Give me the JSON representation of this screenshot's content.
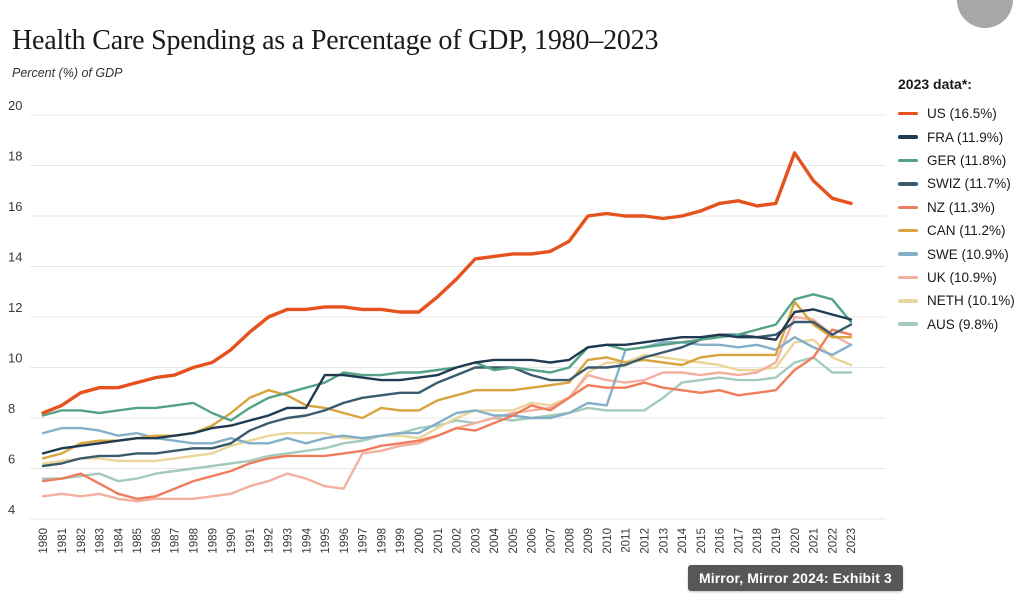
{
  "page": {
    "title": "Health Care Spending as a Percentage of GDP, 1980–2023",
    "y_axis_label": "Percent (%) of GDP",
    "legend_title": "2023 data*:",
    "source_tooltip": "Mirror, Mirror 2024: Exhibit 3"
  },
  "colors": {
    "background": "#ffffff",
    "gridline": "#e7e7e5",
    "axis_text": "#3a3a3a",
    "title_text": "#1a1a1a",
    "tooltip_bg": "#565759",
    "tooltip_text": "#ffffff",
    "fab_circle": "#a7a7a7"
  },
  "chart_data": {
    "type": "line",
    "title": "Health Care Spending as a Percentage of GDP, 1980–2023",
    "xlabel": "",
    "ylabel": "Percent (%) of GDP",
    "ylim": [
      4,
      20
    ],
    "yticks": [
      4,
      6,
      8,
      10,
      12,
      14,
      16,
      18,
      20
    ],
    "grid": true,
    "legend_position": "right",
    "x": [
      1980,
      1981,
      1982,
      1983,
      1984,
      1985,
      1986,
      1987,
      1988,
      1989,
      1990,
      1991,
      1992,
      1993,
      1994,
      1995,
      1996,
      1997,
      1998,
      1999,
      2000,
      2001,
      2002,
      2003,
      2004,
      2005,
      2006,
      2007,
      2008,
      2009,
      2010,
      2011,
      2012,
      2013,
      2014,
      2015,
      2016,
      2017,
      2018,
      2019,
      2020,
      2021,
      2022,
      2023
    ],
    "series": [
      {
        "name": "US",
        "legend_label": "US (16.5%)",
        "color": "#e6521e",
        "value_2023": 16.5,
        "values": [
          8.2,
          8.5,
          9.0,
          9.2,
          9.2,
          9.4,
          9.6,
          9.7,
          10.0,
          10.2,
          10.7,
          11.4,
          12.0,
          12.3,
          12.3,
          12.4,
          12.4,
          12.3,
          12.3,
          12.2,
          12.2,
          12.8,
          13.5,
          14.3,
          14.4,
          14.5,
          14.5,
          14.6,
          15.0,
          16.0,
          16.1,
          16.0,
          16.0,
          15.9,
          16.0,
          16.2,
          16.5,
          16.6,
          16.4,
          16.5,
          18.5,
          17.4,
          16.7,
          16.5
        ]
      },
      {
        "name": "FRA",
        "legend_label": "FRA (11.9%)",
        "color": "#1f3a51",
        "value_2023": 11.9,
        "values": [
          6.6,
          6.8,
          6.9,
          7.0,
          7.1,
          7.2,
          7.2,
          7.3,
          7.4,
          7.6,
          7.7,
          7.9,
          8.1,
          8.4,
          8.4,
          9.7,
          9.7,
          9.6,
          9.5,
          9.5,
          9.6,
          9.7,
          10.0,
          10.2,
          10.3,
          10.3,
          10.3,
          10.2,
          10.3,
          10.8,
          10.9,
          10.9,
          11.0,
          11.1,
          11.2,
          11.2,
          11.3,
          11.2,
          11.2,
          11.1,
          12.2,
          12.3,
          12.1,
          11.9
        ]
      },
      {
        "name": "GER",
        "legend_label": "GER (11.8%)",
        "color": "#55a387",
        "value_2023": 11.8,
        "values": [
          8.1,
          8.3,
          8.3,
          8.2,
          8.3,
          8.4,
          8.4,
          8.5,
          8.6,
          8.2,
          7.9,
          8.4,
          8.8,
          9.0,
          9.2,
          9.4,
          9.8,
          9.7,
          9.7,
          9.8,
          9.8,
          9.9,
          10.0,
          10.2,
          9.9,
          10.0,
          9.9,
          9.8,
          10.0,
          10.8,
          10.9,
          10.7,
          10.8,
          10.9,
          11.0,
          11.1,
          11.2,
          11.3,
          11.5,
          11.7,
          12.7,
          12.9,
          12.7,
          11.8
        ]
      },
      {
        "name": "SWIZ",
        "legend_label": "SWIZ (11.7%)",
        "color": "#3a5a6d",
        "value_2023": 11.7,
        "values": [
          6.1,
          6.2,
          6.4,
          6.5,
          6.5,
          6.6,
          6.6,
          6.7,
          6.8,
          6.8,
          7.0,
          7.5,
          7.8,
          8.0,
          8.1,
          8.3,
          8.6,
          8.8,
          8.9,
          9.0,
          9.0,
          9.4,
          9.7,
          10.0,
          10.0,
          10.0,
          9.7,
          9.5,
          9.5,
          10.0,
          10.0,
          10.1,
          10.4,
          10.6,
          10.8,
          11.1,
          11.3,
          11.3,
          11.2,
          11.3,
          11.8,
          11.8,
          11.3,
          11.7
        ]
      },
      {
        "name": "NZ",
        "legend_label": "NZ (11.3%)",
        "color": "#ef7d5c",
        "value_2023": 11.3,
        "values": [
          5.5,
          5.6,
          5.8,
          5.4,
          5.0,
          4.8,
          4.9,
          5.2,
          5.5,
          5.7,
          5.9,
          6.2,
          6.4,
          6.5,
          6.5,
          6.5,
          6.6,
          6.7,
          6.9,
          7.0,
          7.1,
          7.3,
          7.6,
          7.5,
          7.8,
          8.1,
          8.5,
          8.3,
          8.8,
          9.3,
          9.2,
          9.2,
          9.4,
          9.2,
          9.1,
          9.0,
          9.1,
          8.9,
          9.0,
          9.1,
          9.9,
          10.4,
          11.5,
          11.3
        ]
      },
      {
        "name": "CAN",
        "legend_label": "CAN (11.2%)",
        "color": "#d7a43e",
        "value_2023": 11.2,
        "values": [
          6.4,
          6.6,
          7.0,
          7.1,
          7.1,
          7.2,
          7.3,
          7.3,
          7.4,
          7.7,
          8.2,
          8.8,
          9.1,
          8.9,
          8.5,
          8.4,
          8.2,
          8.0,
          8.4,
          8.3,
          8.3,
          8.7,
          8.9,
          9.1,
          9.1,
          9.1,
          9.2,
          9.3,
          9.4,
          10.3,
          10.4,
          10.2,
          10.3,
          10.2,
          10.1,
          10.4,
          10.5,
          10.5,
          10.5,
          10.5,
          12.6,
          11.7,
          11.2,
          11.2
        ]
      },
      {
        "name": "SWE",
        "legend_label": "SWE (10.9%)",
        "color": "#83afc9",
        "value_2023": 10.9,
        "values": [
          7.4,
          7.6,
          7.6,
          7.5,
          7.3,
          7.4,
          7.2,
          7.1,
          7.0,
          7.0,
          7.2,
          7.0,
          7.0,
          7.2,
          7.0,
          7.2,
          7.3,
          7.2,
          7.3,
          7.4,
          7.4,
          7.8,
          8.2,
          8.3,
          8.1,
          8.1,
          8.0,
          8.0,
          8.2,
          8.6,
          8.5,
          10.7,
          10.8,
          11.0,
          11.0,
          10.9,
          10.9,
          10.8,
          10.9,
          10.7,
          11.2,
          10.8,
          10.5,
          10.9
        ]
      },
      {
        "name": "UK",
        "legend_label": "UK (10.9%)",
        "color": "#f5af9e",
        "value_2023": 10.9,
        "values": [
          4.9,
          5.0,
          4.9,
          5.0,
          4.8,
          4.7,
          4.8,
          4.8,
          4.8,
          4.9,
          5.0,
          5.3,
          5.5,
          5.8,
          5.6,
          5.3,
          5.2,
          6.6,
          6.7,
          6.9,
          7.0,
          7.3,
          7.6,
          7.8,
          8.0,
          8.2,
          8.3,
          8.4,
          8.8,
          9.7,
          9.5,
          9.4,
          9.5,
          9.8,
          9.8,
          9.7,
          9.8,
          9.7,
          9.8,
          10.2,
          12.0,
          11.9,
          11.3,
          10.9
        ]
      },
      {
        "name": "NETH",
        "legend_label": "NETH (10.1%)",
        "color": "#ead59a",
        "value_2023": 10.1,
        "values": [
          6.2,
          6.3,
          6.4,
          6.4,
          6.3,
          6.3,
          6.3,
          6.4,
          6.5,
          6.6,
          6.9,
          7.1,
          7.3,
          7.4,
          7.4,
          7.4,
          7.2,
          7.2,
          7.3,
          7.3,
          7.2,
          7.6,
          8.0,
          8.3,
          8.3,
          8.3,
          8.6,
          8.5,
          8.8,
          9.8,
          10.2,
          10.2,
          10.5,
          10.4,
          10.3,
          10.2,
          10.1,
          9.9,
          9.9,
          10.0,
          11.0,
          11.1,
          10.4,
          10.1
        ]
      },
      {
        "name": "AUS",
        "legend_label": "AUS (9.8%)",
        "color": "#a3cabb",
        "value_2023": 9.8,
        "values": [
          5.6,
          5.6,
          5.7,
          5.8,
          5.5,
          5.6,
          5.8,
          5.9,
          6.0,
          6.1,
          6.2,
          6.3,
          6.5,
          6.6,
          6.7,
          6.8,
          7.0,
          7.1,
          7.3,
          7.4,
          7.6,
          7.7,
          7.9,
          7.8,
          8.0,
          7.9,
          8.0,
          8.1,
          8.2,
          8.4,
          8.3,
          8.3,
          8.3,
          8.8,
          9.4,
          9.5,
          9.6,
          9.5,
          9.5,
          9.6,
          10.2,
          10.4,
          9.8,
          9.8
        ]
      }
    ]
  }
}
